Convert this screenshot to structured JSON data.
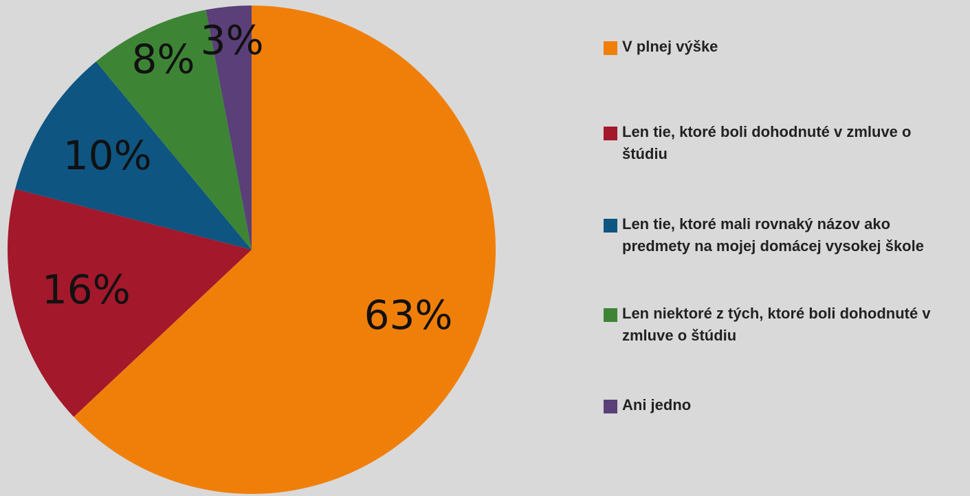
{
  "chart_data": {
    "type": "pie",
    "categories": [
      "V plnej výške",
      "Len tie, ktoré boli dohodnuté v zmluve o štúdiu",
      "Len tie, ktoré mali rovnaký názov ako predmety na mojej domácej vysokej škole",
      "Len niektoré z tých, ktoré boli dohodnuté v zmluve o štúdiu",
      "Ani jedno"
    ],
    "values": [
      63,
      16,
      10,
      8,
      3
    ],
    "value_labels": [
      "63%",
      "16%",
      "10%",
      "8%",
      "3%"
    ],
    "colors": [
      "#f07f09",
      "#a3182b",
      "#0e5582",
      "#3d8535",
      "#5a3f78"
    ],
    "legend": "right"
  }
}
